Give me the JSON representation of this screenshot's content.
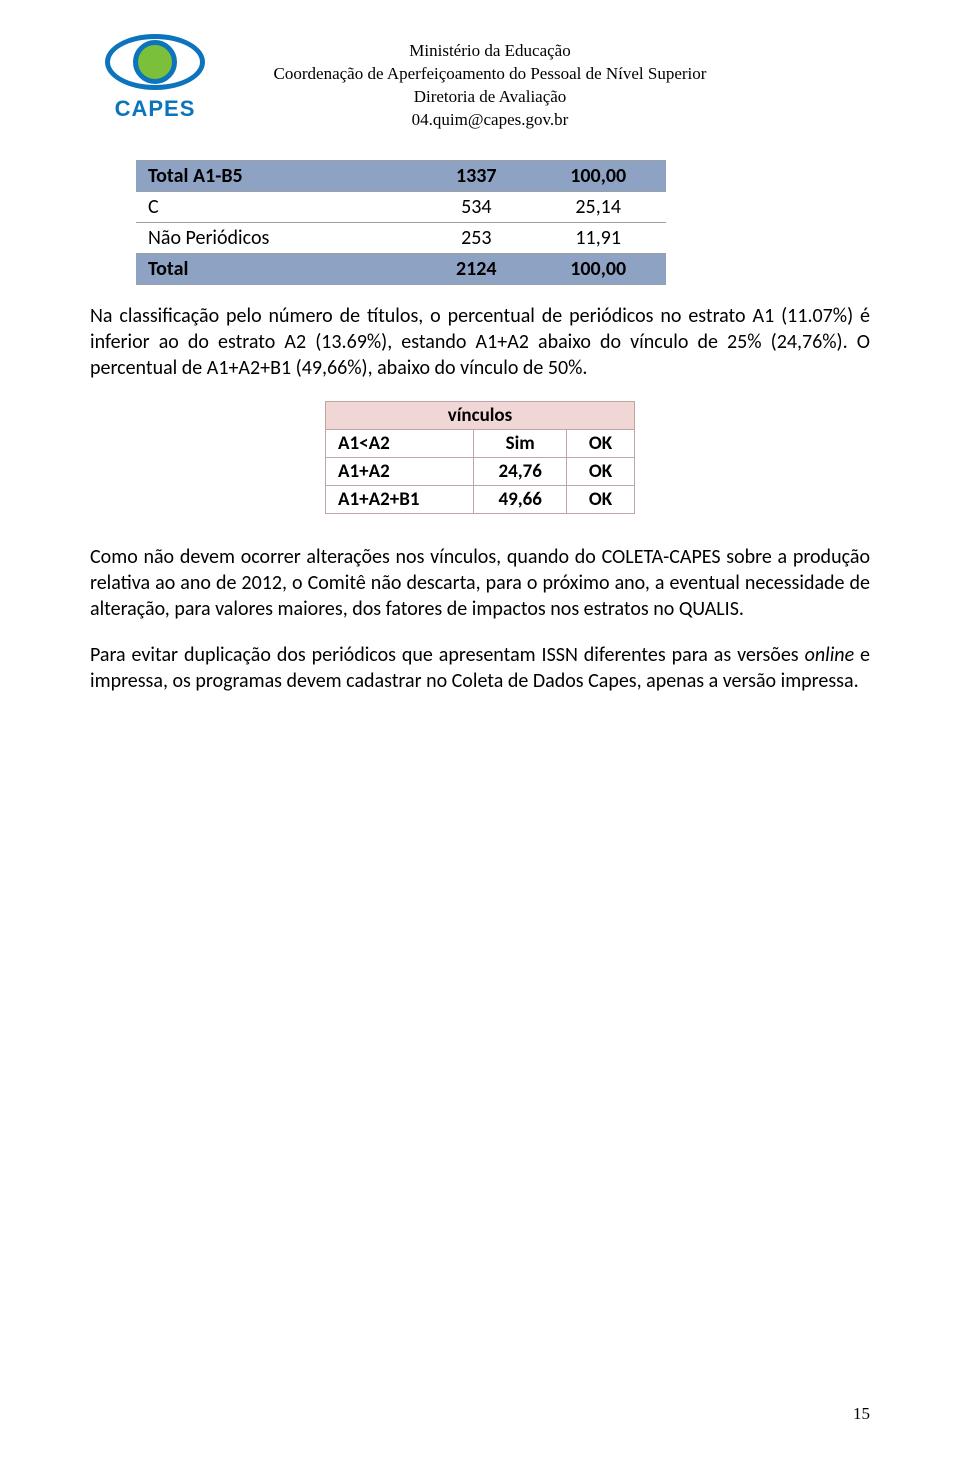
{
  "logo": {
    "brand": "CAPES",
    "brand_color": "#0b74bd",
    "accent_color": "#7bbf3a"
  },
  "header": {
    "line1": "Ministério da Educação",
    "line2": "Coordenação de Aperfeiçoamento do Pessoal de Nível Superior",
    "line3": "Diretoria de Avaliação",
    "line4": "04.quim@capes.gov.br"
  },
  "table1": {
    "header_bg": "#8ea3c4",
    "border_color": "#9aa0a6",
    "columns": [
      "label",
      "count",
      "percent"
    ],
    "column_widths_pct": [
      54,
      23,
      23
    ],
    "col_align": [
      "left",
      "center",
      "center"
    ],
    "font_family": "Calibri",
    "font_size_pt": 15,
    "rows": [
      {
        "label": "Total A1-B5",
        "count": "1337",
        "percent": "100,00",
        "is_header": true
      },
      {
        "label": "C",
        "count": "534",
        "percent": "25,14",
        "is_header": false
      },
      {
        "label": "Não Periódicos",
        "count": "253",
        "percent": "11,91",
        "is_header": false
      },
      {
        "label": "Total",
        "count": "2124",
        "percent": "100,00",
        "is_header": true
      }
    ]
  },
  "para1": "Na classificação pelo número de títulos, o percentual de periódicos no estrato A1 (11.07%) é inferior ao do estrato A2 (13.69%), estando A1+A2 abaixo do vínculo de 25% (24,76%). O percentual de A1+A2+B1  (49,66%), abaixo do vínculo de  50%.",
  "table2": {
    "title": "vínculos",
    "header_bg": "#f1d6d6",
    "border_color": "#bfa6a6",
    "font_family": "Calibri",
    "font_size_pt": 14,
    "columns": [
      "label",
      "value",
      "status"
    ],
    "column_widths_pct": [
      48,
      30,
      22
    ],
    "rows": [
      {
        "label": "A1<A2",
        "value": "Sim",
        "status": "OK"
      },
      {
        "label": "A1+A2",
        "value": "24,76",
        "status": "OK"
      },
      {
        "label": "A1+A2+B1",
        "value": "49,66",
        "status": "OK"
      }
    ]
  },
  "para2_a": "Como  não devem ocorrer alterações nos vínculos, quando do COLETA-CAPES sobre a produção relativa ao ano de 2012, o Comitê não descarta, para o próximo ano, a eventual necessidade de alteração, para valores maiores, dos fatores de impactos nos estratos no QUALIS.",
  "para3_a": "Para evitar duplicação dos periódicos que apresentam ISSN diferentes para as versões ",
  "para3_italic": "online",
  "para3_b": " e impressa, os programas devem cadastrar no Coleta de Dados Capes, apenas a versão impressa.",
  "page_number": "15",
  "colors": {
    "text": "#000000",
    "background": "#ffffff"
  }
}
